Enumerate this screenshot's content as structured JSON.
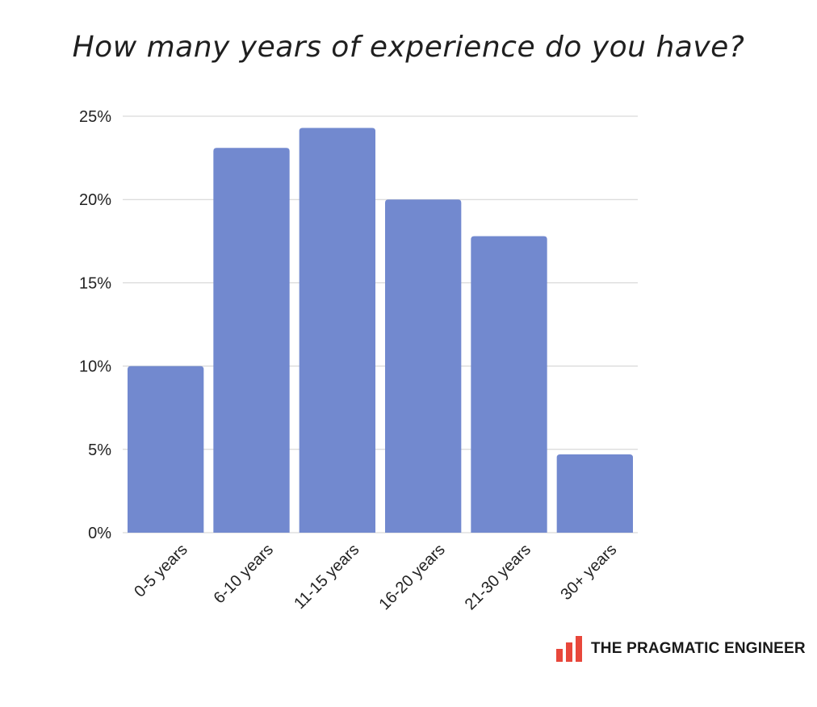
{
  "chart_data": {
    "type": "bar",
    "title": "How many years of experience do you have?",
    "categories": [
      "0-5 years",
      "6-10 years",
      "11-15 years",
      "16-20 years",
      "21-30 years",
      "30+ years"
    ],
    "values": [
      10.0,
      23.1,
      24.3,
      20.0,
      17.8,
      4.7
    ],
    "unit": "%",
    "ylim": [
      0,
      25
    ],
    "yticks": [
      "0%",
      "5%",
      "10%",
      "15%",
      "20%",
      "25%"
    ],
    "ytick_values": [
      0,
      5,
      10,
      15,
      20,
      25
    ],
    "grid": true,
    "legend": "none",
    "bar_color": "#7289CF"
  },
  "brand": {
    "name": "THE PRAGMATIC ENGINEER",
    "logo_icon": "bar-chart-logo-icon",
    "logo_color": "#E8473B"
  }
}
